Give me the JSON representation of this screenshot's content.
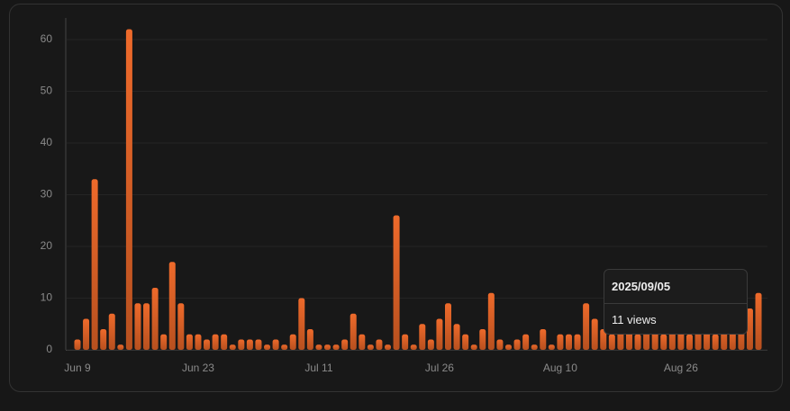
{
  "chart_data": {
    "type": "bar",
    "categories": [
      "Jun 9",
      null,
      null,
      null,
      null,
      null,
      null,
      null,
      null,
      null,
      null,
      null,
      null,
      null,
      "Jun 23",
      null,
      null,
      null,
      null,
      null,
      null,
      null,
      null,
      null,
      null,
      null,
      null,
      null,
      "Jul 11",
      null,
      null,
      null,
      null,
      null,
      null,
      null,
      null,
      null,
      null,
      null,
      null,
      null,
      "Jul 26",
      null,
      null,
      null,
      null,
      null,
      null,
      null,
      null,
      null,
      null,
      null,
      null,
      null,
      "Aug 10",
      null,
      null,
      null,
      null,
      null,
      null,
      null,
      null,
      null,
      null,
      null,
      null,
      null,
      "Aug 26",
      null,
      null,
      null,
      null,
      null,
      null,
      null,
      null,
      null
    ],
    "values": [
      2,
      6,
      33,
      4,
      7,
      1,
      62,
      9,
      9,
      12,
      3,
      17,
      9,
      3,
      3,
      2,
      3,
      3,
      1,
      2,
      2,
      2,
      1,
      2,
      1,
      3,
      10,
      4,
      1,
      1,
      1,
      2,
      7,
      3,
      1,
      2,
      1,
      26,
      3,
      1,
      5,
      2,
      6,
      9,
      5,
      3,
      1,
      4,
      11,
      2,
      1,
      2,
      3,
      1,
      4,
      1,
      3,
      3,
      3,
      9,
      6,
      4,
      3,
      5,
      4,
      3,
      6,
      4,
      3,
      5,
      4,
      3,
      6,
      4,
      3,
      5,
      4,
      6,
      8,
      11
    ],
    "color": "#e8672a",
    "ylim": [
      0,
      64
    ],
    "yticks": [
      0,
      10,
      20,
      30,
      40,
      50,
      60
    ],
    "grid": true,
    "tooltip": {
      "title": "2025/09/05",
      "text": "11 views"
    }
  }
}
